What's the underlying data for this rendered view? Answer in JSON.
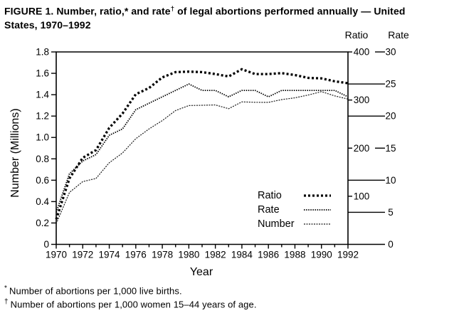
{
  "title": {
    "line1_pre": "FIGURE 1. Number, ratio,* and rate",
    "dagger": "†",
    "line1_post": " of legal abortions performed annually — United",
    "line2": "States, 1970–1992"
  },
  "right_axis_headers": {
    "ratio": "Ratio",
    "rate": "Rate"
  },
  "legend": {
    "items": [
      {
        "label": "Ratio"
      },
      {
        "label": "Rate"
      },
      {
        "label": "Number"
      }
    ]
  },
  "footnotes": [
    {
      "marker": "*",
      "text": "Number of abortions per 1,000 live births."
    },
    {
      "marker": "†",
      "text": "Number of abortions per 1,000 women 15–44 years of age."
    }
  ],
  "chart_data": {
    "type": "line",
    "title": "FIGURE 1. Number, ratio, and rate of legal abortions performed annually — United States, 1970–1992",
    "xlabel": "Year",
    "grid": false,
    "legend_position": "inside lower-right",
    "x": [
      1970,
      1971,
      1972,
      1973,
      1974,
      1975,
      1976,
      1977,
      1978,
      1979,
      1980,
      1981,
      1982,
      1983,
      1984,
      1985,
      1986,
      1987,
      1988,
      1989,
      1990,
      1991,
      1992
    ],
    "axes": {
      "x": {
        "label": "Year",
        "min": 1970,
        "max": 1992,
        "ticks": [
          1970,
          1972,
          1974,
          1976,
          1978,
          1980,
          1982,
          1984,
          1986,
          1988,
          1990,
          1992
        ]
      },
      "number": {
        "label": "Number (Millions)",
        "min": 0,
        "max": 1.8,
        "ticks": [
          0,
          0.2,
          0.4,
          0.6,
          0.8,
          1.0,
          1.2,
          1.4,
          1.6,
          1.8
        ]
      },
      "ratio": {
        "label": "Ratio",
        "min": 0,
        "max": 400,
        "ticks": [
          100,
          200,
          300,
          400
        ]
      },
      "rate": {
        "label": "Rate",
        "min": 0,
        "max": 30,
        "ticks": [
          0,
          5,
          10,
          15,
          20,
          25,
          30
        ]
      }
    },
    "series": [
      {
        "name": "Ratio",
        "axis": "ratio",
        "unit": "abortions per 1,000 live births",
        "values": [
          52,
          137,
          180,
          196,
          242,
          272,
          312,
          325,
          347,
          358,
          359,
          358,
          354,
          349,
          364,
          354,
          354,
          356,
          352,
          346,
          345,
          339,
          335
        ]
      },
      {
        "name": "Rate",
        "axis": "rate",
        "unit": "abortions per 1,000 women 15-44 years of age",
        "values": [
          5,
          11,
          13,
          14,
          17,
          18,
          21,
          22,
          23,
          24,
          25,
          24,
          24,
          23,
          24,
          24,
          23,
          24,
          24,
          24,
          24,
          24,
          23
        ]
      },
      {
        "name": "Number",
        "axis": "number",
        "unit": "millions",
        "values": [
          0.193,
          0.486,
          0.587,
          0.616,
          0.763,
          0.855,
          0.988,
          1.08,
          1.158,
          1.252,
          1.298,
          1.301,
          1.304,
          1.269,
          1.333,
          1.329,
          1.328,
          1.354,
          1.371,
          1.397,
          1.429,
          1.389,
          1.359
        ]
      }
    ]
  }
}
